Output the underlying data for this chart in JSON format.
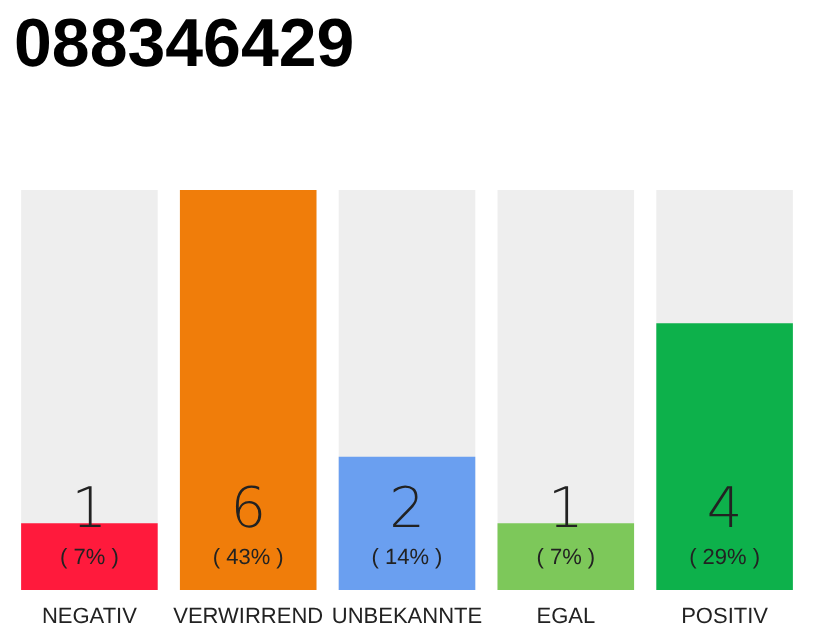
{
  "chart_data": {
    "type": "bar",
    "title": "088346429",
    "categories": [
      "NEGATIV",
      "VERWIRREND",
      "UNBEKANNTE",
      "EGAL",
      "POSITIV"
    ],
    "values": [
      1,
      6,
      2,
      1,
      4
    ],
    "colors": [
      "#ff1a3c",
      "#f07d0a",
      "#6a9ff0",
      "#7dc85a",
      "#0db14b"
    ],
    "value_labels": [
      "1\n( 7% )",
      "6\n( 43% )",
      "2\n( 14% )",
      "1\n( 7% )",
      "4\n( 29% )"
    ]
  }
}
